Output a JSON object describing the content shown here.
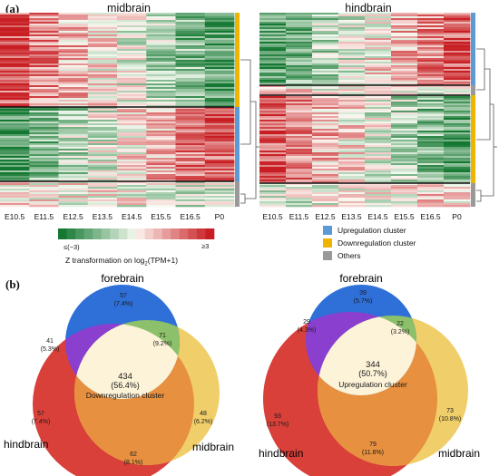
{
  "panel_a": {
    "label": "(a)",
    "heatmaps": [
      {
        "title": "midbrain"
      },
      {
        "title": "hindbrain"
      }
    ],
    "stages": [
      "E10.5",
      "E11.5",
      "E12.5",
      "E13.5",
      "E14.5",
      "E15.5",
      "E16.5",
      "P0"
    ],
    "colorbar": {
      "min_label": "≤(−3)",
      "max_label": "≥3",
      "title_main": "Z transformation on log",
      "title_sub": "2",
      "title_tail": "(TPM+1)"
    },
    "cluster_legend": [
      {
        "label": "Upregulation cluster",
        "color": "#5b9bd5"
      },
      {
        "label": "Downregulation cluster",
        "color": "#f0b400"
      },
      {
        "label": "Others",
        "color": "#999999"
      }
    ]
  },
  "panel_b": {
    "label": "(b)",
    "venns": [
      {
        "regions": {
          "forebrain": "forebrain",
          "hindbrain": "hindbrain",
          "midbrain": "midbrain"
        },
        "cluster": "Downregulation cluster",
        "counts": [
          {
            "n": "57",
            "pct": "(7.4%)"
          },
          {
            "n": "41",
            "pct": "(5.3%)"
          },
          {
            "n": "71",
            "pct": "(9.2%)"
          },
          {
            "n": "434",
            "pct": "(56.4%)"
          },
          {
            "n": "57",
            "pct": "(7.4%)"
          },
          {
            "n": "48",
            "pct": "(6.2%)"
          },
          {
            "n": "62",
            "pct": "(8.1%)"
          }
        ]
      },
      {
        "regions": {
          "forebrain": "forebrain",
          "hindbrain": "hindbrain",
          "midbrain": "midbrain"
        },
        "cluster": "Upregulation cluster",
        "counts": [
          {
            "n": "39",
            "pct": "(5.7%)"
          },
          {
            "n": "29",
            "pct": "(4.3%)"
          },
          {
            "n": "22",
            "pct": "(3.2%)"
          },
          {
            "n": "344",
            "pct": "(50.7%)"
          },
          {
            "n": "93",
            "pct": "(13.7%)"
          },
          {
            "n": "73",
            "pct": "(10.8%)"
          },
          {
            "n": "79",
            "pct": "(11.6%)"
          }
        ]
      }
    ],
    "colors": {
      "forebrain": "#2f6fd8",
      "hindbrain": "#d9403a",
      "midbrain": "#f0cf6a",
      "fore_hind": "#8a3fcf",
      "fore_mid": "#8cc06a",
      "hind_mid": "#e79040",
      "center": "#fdf3d8"
    }
  }
}
